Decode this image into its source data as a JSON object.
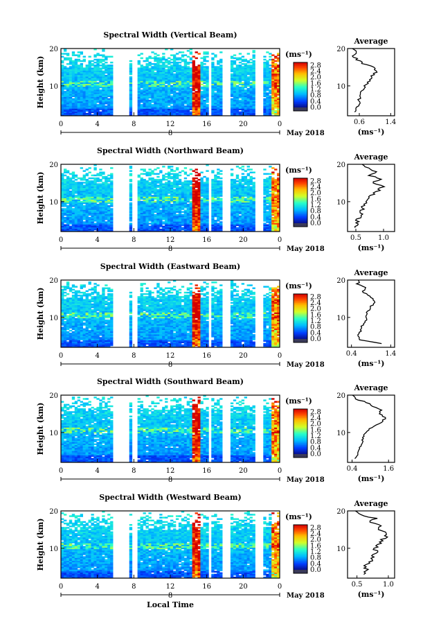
{
  "chart_data": [
    {
      "type": "heatmap",
      "title": "Spectral Width (Vertical Beam)",
      "ylabel": "Height (km)",
      "ylim": [
        2,
        20
      ],
      "y_ticks": [
        "20",
        "10"
      ],
      "x_ticks": [
        "0",
        "4",
        "8",
        "12",
        "16",
        "20",
        "0"
      ],
      "xlim": [
        0,
        24
      ],
      "date_label": "May 2018",
      "day_marker": "8",
      "colorbar": {
        "unit": "(ms⁻¹)",
        "ticks": [
          "2.8",
          "2.4",
          "2.0",
          "1.6",
          "1.2",
          "0.8",
          "0.4",
          "0.0"
        ],
        "range": [
          0,
          3.0
        ]
      },
      "data_gaps_hours": [
        [
          5.8,
          7.6
        ],
        [
          7.9,
          8.3
        ],
        [
          16.1,
          16.6
        ],
        [
          17.6,
          18.6
        ],
        [
          21.4,
          22.2
        ]
      ],
      "average": {
        "title": "Average",
        "xlabel": "(ms⁻¹)",
        "x_ticks": [
          "0.6",
          "1.4"
        ],
        "xlim": [
          0.3,
          1.5
        ],
        "ylim": [
          2,
          20
        ],
        "heights": [
          3,
          4,
          5,
          6,
          7,
          8,
          9,
          10,
          11,
          12,
          13,
          14,
          15,
          16,
          17,
          18,
          19,
          20
        ],
        "values": [
          0.5,
          0.55,
          0.6,
          0.58,
          0.62,
          0.65,
          0.7,
          0.75,
          0.82,
          0.9,
          0.95,
          1.05,
          0.95,
          0.7,
          0.55,
          0.45,
          0.5,
          0.45
        ]
      }
    },
    {
      "type": "heatmap",
      "title": "Spectral Width (Northward Beam)",
      "ylabel": "Height (km)",
      "ylim": [
        2,
        20
      ],
      "y_ticks": [
        "20",
        "10"
      ],
      "x_ticks": [
        "0",
        "4",
        "8",
        "12",
        "16",
        "20",
        "0"
      ],
      "xlim": [
        0,
        24
      ],
      "date_label": "May 2018",
      "day_marker": "8",
      "colorbar": {
        "unit": "(ms⁻¹)",
        "ticks": [
          "2.8",
          "2.4",
          "2.0",
          "1.6",
          "1.2",
          "0.8",
          "0.4",
          "0.0"
        ],
        "range": [
          0,
          3.0
        ]
      },
      "data_gaps_hours": [
        [
          5.8,
          7.6
        ],
        [
          7.9,
          8.3
        ],
        [
          16.1,
          16.6
        ],
        [
          17.6,
          18.6
        ],
        [
          21.4,
          22.2
        ]
      ],
      "average": {
        "title": "Average",
        "xlabel": "(ms⁻¹)",
        "x_ticks": [
          "0.5",
          "1.0"
        ],
        "xlim": [
          0.35,
          1.2
        ],
        "ylim": [
          2,
          20
        ],
        "heights": [
          3,
          4,
          5,
          6,
          7,
          8,
          9,
          10,
          11,
          12,
          13,
          14,
          15,
          16,
          17,
          18,
          19,
          20
        ],
        "values": [
          0.5,
          0.55,
          0.5,
          0.6,
          0.58,
          0.62,
          0.65,
          0.7,
          0.75,
          0.8,
          0.9,
          1.0,
          0.8,
          0.95,
          0.75,
          0.9,
          0.7,
          0.6
        ]
      }
    },
    {
      "type": "heatmap",
      "title": "Spectral Width (Eastward Beam)",
      "ylabel": "Height (km)",
      "ylim": [
        2,
        20
      ],
      "y_ticks": [
        "20",
        "10"
      ],
      "x_ticks": [
        "0",
        "4",
        "8",
        "12",
        "16",
        "20",
        "0"
      ],
      "xlim": [
        0,
        24
      ],
      "date_label": "May 2018",
      "day_marker": "8",
      "colorbar": {
        "unit": "(ms⁻¹)",
        "ticks": [
          "2.8",
          "2.4",
          "2.0",
          "1.6",
          "1.2",
          "0.8",
          "0.4",
          "0.0"
        ],
        "range": [
          0,
          3.0
        ]
      },
      "data_gaps_hours": [
        [
          5.8,
          7.6
        ],
        [
          7.9,
          8.3
        ],
        [
          16.1,
          16.6
        ],
        [
          17.6,
          18.6
        ],
        [
          21.4,
          22.2
        ]
      ],
      "average": {
        "title": "Average",
        "xlabel": "(ms⁻¹)",
        "x_ticks": [
          "0.4",
          "1.4"
        ],
        "xlim": [
          0.3,
          1.5
        ],
        "ylim": [
          2,
          20
        ],
        "heights": [
          3,
          4,
          5,
          6,
          7,
          8,
          9,
          10,
          11,
          12,
          13,
          14,
          15,
          16,
          17,
          18,
          19,
          20
        ],
        "values": [
          1.2,
          0.6,
          0.55,
          0.6,
          0.65,
          0.7,
          0.75,
          0.8,
          0.78,
          0.85,
          0.9,
          1.0,
          0.95,
          0.8,
          0.7,
          0.75,
          0.55,
          0.6
        ]
      }
    },
    {
      "type": "heatmap",
      "title": "Spectral Width (Southward Beam)",
      "ylabel": "Height (km)",
      "ylim": [
        2,
        20
      ],
      "y_ticks": [
        "20",
        "10"
      ],
      "x_ticks": [
        "0",
        "4",
        "8",
        "12",
        "16",
        "20",
        "0"
      ],
      "xlim": [
        0,
        24
      ],
      "date_label": "May 2018",
      "day_marker": "8",
      "colorbar": {
        "unit": "(ms⁻¹)",
        "ticks": [
          "2.8",
          "2.4",
          "2.0",
          "1.6",
          "1.2",
          "0.8",
          "0.4",
          "0.0"
        ],
        "range": [
          0,
          3.0
        ]
      },
      "data_gaps_hours": [
        [
          5.8,
          7.6
        ],
        [
          7.9,
          8.3
        ],
        [
          16.1,
          16.6
        ],
        [
          17.6,
          18.6
        ],
        [
          21.4,
          22.2
        ]
      ],
      "average": {
        "title": "Average",
        "xlabel": "(ms⁻¹)",
        "x_ticks": [
          "0.4",
          "1.6"
        ],
        "xlim": [
          0.25,
          1.8
        ],
        "ylim": [
          2,
          20
        ],
        "heights": [
          3,
          4,
          5,
          6,
          7,
          8,
          9,
          10,
          11,
          12,
          13,
          14,
          15,
          16,
          17,
          18,
          19,
          20
        ],
        "values": [
          0.5,
          0.55,
          0.6,
          0.65,
          0.7,
          0.75,
          0.8,
          0.85,
          1.0,
          1.2,
          1.4,
          1.5,
          1.3,
          1.35,
          1.1,
          0.9,
          0.5,
          0.4
        ]
      }
    },
    {
      "type": "heatmap",
      "title": "Spectral Width (Westward Beam)",
      "ylabel": "Height (km)",
      "xlabel": "Local Time",
      "ylim": [
        2,
        20
      ],
      "y_ticks": [
        "20",
        "10"
      ],
      "x_ticks": [
        "0",
        "4",
        "8",
        "12",
        "16",
        "20",
        "0"
      ],
      "xlim": [
        0,
        24
      ],
      "date_label": "May 2018",
      "day_marker": "8",
      "colorbar": {
        "unit": "(ms⁻¹)",
        "ticks": [
          "2.8",
          "2.4",
          "2.0",
          "1.6",
          "1.2",
          "0.8",
          "0.4",
          "0.0"
        ],
        "range": [
          0,
          3.0
        ]
      },
      "data_gaps_hours": [
        [
          5.8,
          7.6
        ],
        [
          7.9,
          8.3
        ],
        [
          16.1,
          16.6
        ],
        [
          17.6,
          18.6
        ],
        [
          21.4,
          22.2
        ]
      ],
      "average": {
        "title": "Average",
        "xlabel": "(ms⁻¹)",
        "x_ticks": [
          "0.5",
          "1.0"
        ],
        "xlim": [
          0.35,
          1.1
        ],
        "ylim": [
          2,
          20
        ],
        "heights": [
          3,
          4,
          5,
          6,
          7,
          8,
          9,
          10,
          11,
          12,
          13,
          14,
          15,
          16,
          17,
          18,
          19,
          20
        ],
        "values": [
          0.6,
          0.65,
          0.62,
          0.7,
          0.72,
          0.75,
          0.8,
          0.78,
          0.85,
          0.9,
          0.95,
          1.0,
          0.85,
          0.9,
          0.7,
          0.8,
          0.55,
          0.5
        ]
      }
    }
  ]
}
